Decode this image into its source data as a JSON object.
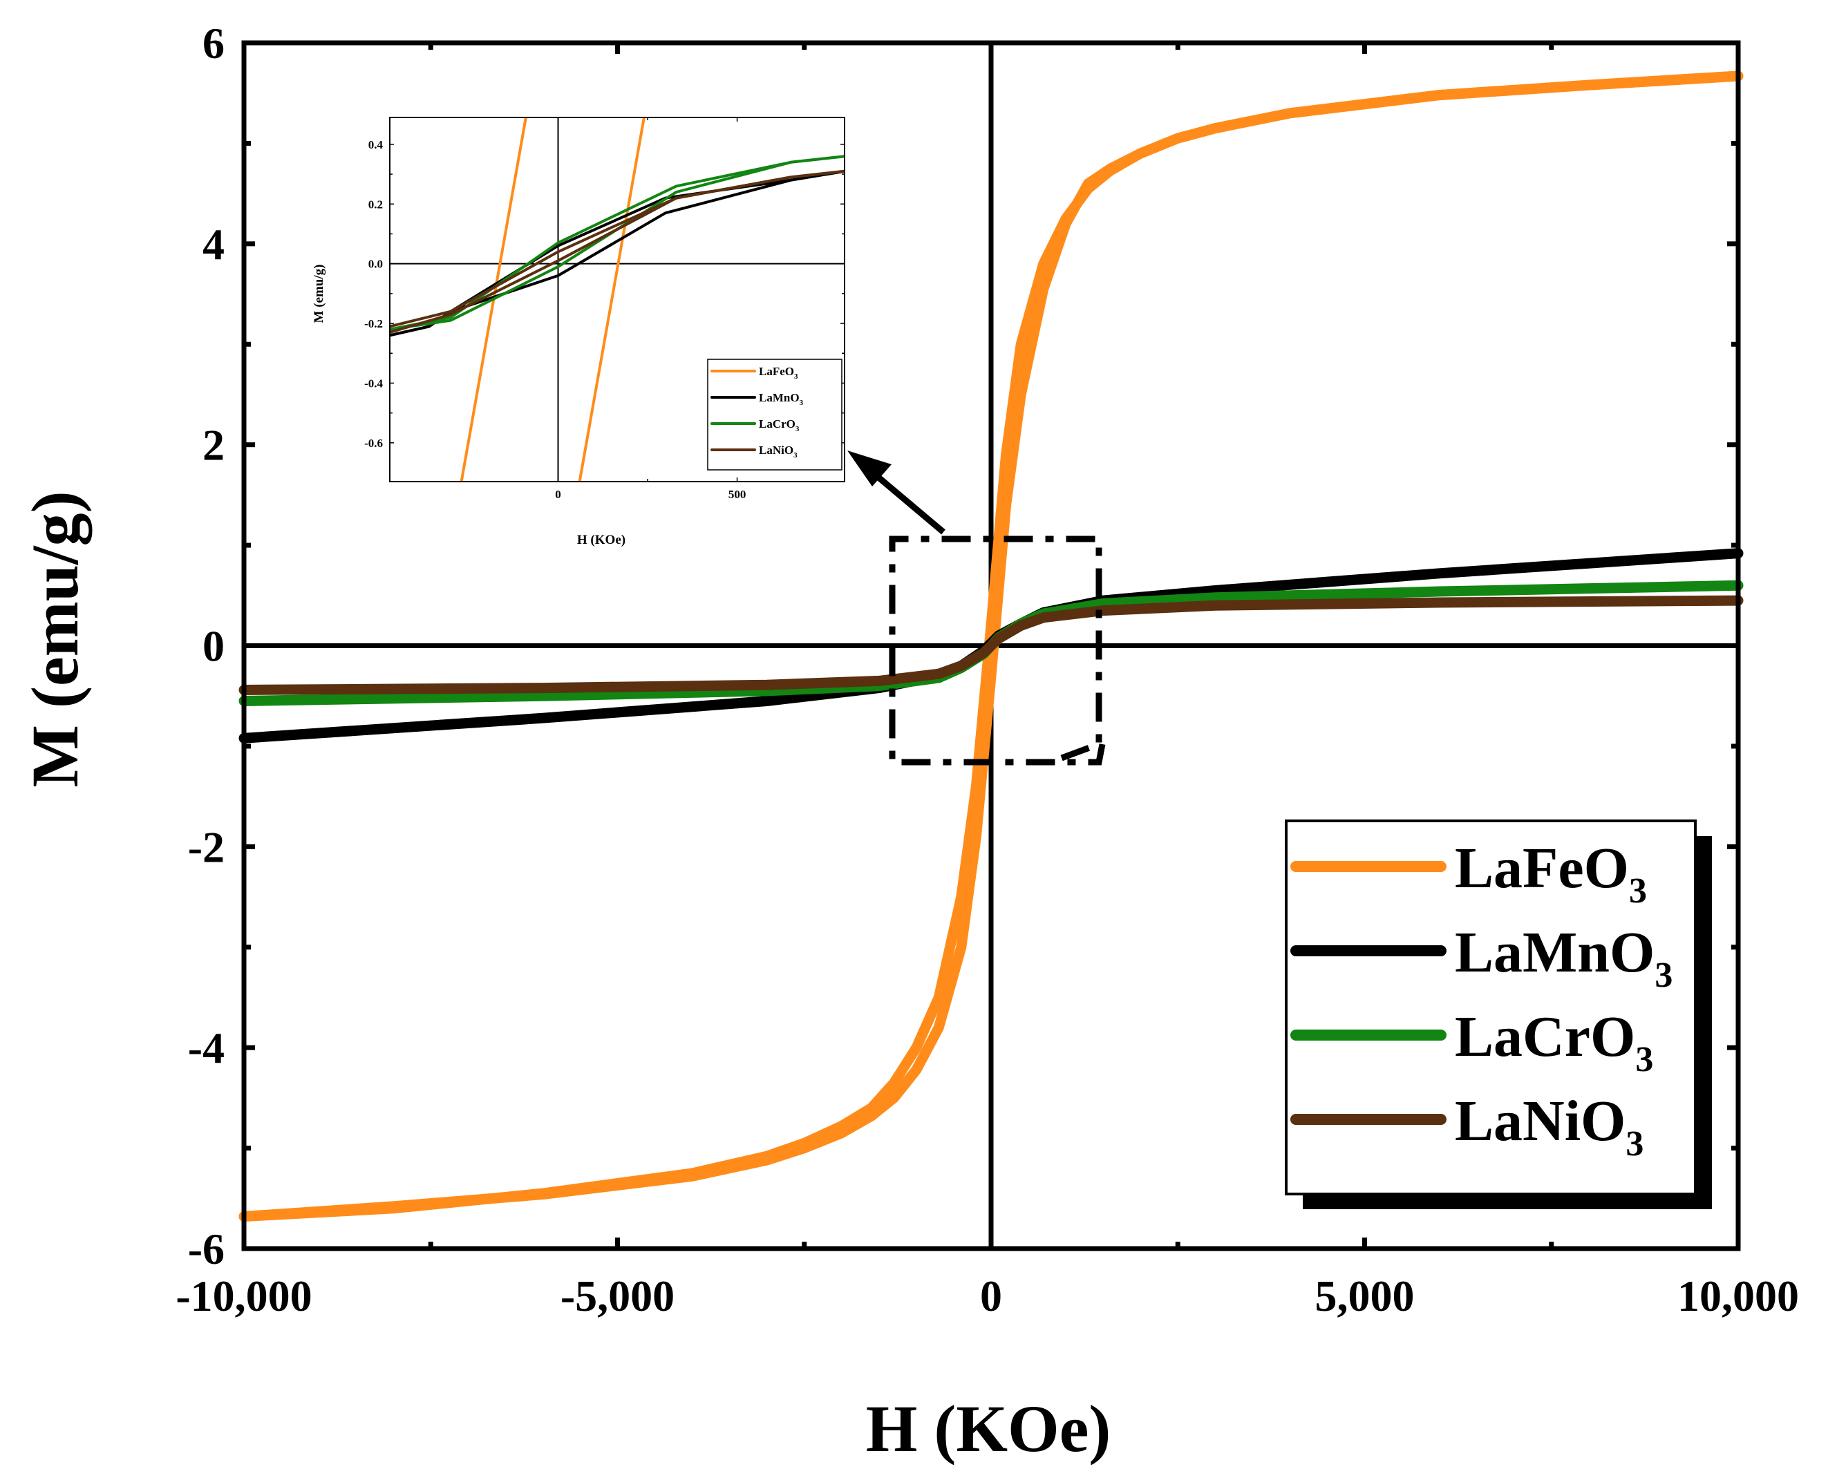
{
  "chart_data": [
    {
      "id": "main",
      "type": "line",
      "title": "",
      "xlabel": "H (KOe)",
      "ylabel": "M (emu/g)",
      "xlim": [
        -10000,
        10000
      ],
      "ylim": [
        -6,
        6
      ],
      "xticks": [
        -10000,
        -5000,
        0,
        5000,
        10000
      ],
      "xtick_labels": [
        "-10,000",
        "-5,000",
        "0",
        "5,000",
        "10,000"
      ],
      "yticks": [
        -6,
        -4,
        -2,
        0,
        2,
        4,
        6
      ],
      "ytick_labels": [
        "-6",
        "-4",
        "-2",
        "0",
        "2",
        "4",
        "6"
      ],
      "legend_position": "bottom-right",
      "series": [
        {
          "name": "LaFeO3",
          "formula": {
            "base": "LaFeO",
            "sub": "3"
          },
          "color": "#ff8c1a",
          "branches": [
            {
              "x": [
                -10000,
                -8000,
                -6000,
                -4000,
                -3000,
                -2500,
                -2000,
                -1600,
                -1300,
                -1000,
                -700,
                -400,
                -200,
                0,
                200,
                400,
                700,
                1000,
                1300,
                1600,
                2000,
                2500,
                3000,
                4000,
                6000,
                8000,
                10000
              ],
              "y": [
                -5.68,
                -5.6,
                -5.45,
                -5.25,
                -5.08,
                -4.95,
                -4.78,
                -4.6,
                -4.35,
                -4.0,
                -3.5,
                -2.5,
                -1.4,
                0.2,
                1.9,
                3.0,
                3.8,
                4.25,
                4.55,
                4.73,
                4.9,
                5.05,
                5.15,
                5.3,
                5.48,
                5.58,
                5.67
              ]
            },
            {
              "x": [
                10000,
                8000,
                6000,
                4000,
                3000,
                2500,
                2000,
                1600,
                1300,
                1000,
                700,
                400,
                200,
                0,
                -200,
                -400,
                -700,
                -1000,
                -1300,
                -1600,
                -2000,
                -2500,
                -3000,
                -4000,
                -6000,
                -8000,
                -10000
              ],
              "y": [
                5.67,
                5.58,
                5.48,
                5.3,
                5.15,
                5.05,
                4.9,
                4.75,
                4.6,
                4.2,
                3.55,
                2.5,
                1.4,
                -0.3,
                -1.9,
                -3.0,
                -3.8,
                -4.22,
                -4.5,
                -4.68,
                -4.85,
                -5.0,
                -5.12,
                -5.28,
                -5.46,
                -5.58,
                -5.68
              ]
            }
          ]
        },
        {
          "name": "LaMnO3",
          "formula": {
            "base": "LaMnO",
            "sub": "3"
          },
          "color": "#000000",
          "branches": [
            {
              "x": [
                -10000,
                -6000,
                -3000,
                -1500,
                -700,
                -400,
                -100,
                100,
                400,
                700,
                1500,
                3000,
                6000,
                10000
              ],
              "y": [
                -0.92,
                -0.72,
                -0.55,
                -0.42,
                -0.3,
                -0.2,
                -0.05,
                0.1,
                0.22,
                0.33,
                0.45,
                0.55,
                0.72,
                0.92
              ]
            }
          ]
        },
        {
          "name": "LaCrO3",
          "formula": {
            "base": "LaCrO",
            "sub": "3"
          },
          "color": "#128512",
          "branches": [
            {
              "x": [
                -10000,
                -6000,
                -3000,
                -1500,
                -700,
                -400,
                -100,
                100,
                400,
                700,
                1500,
                3000,
                6000,
                10000
              ],
              "y": [
                -0.55,
                -0.5,
                -0.45,
                -0.4,
                -0.32,
                -0.22,
                -0.08,
                0.08,
                0.22,
                0.32,
                0.42,
                0.48,
                0.54,
                0.6
              ]
            }
          ]
        },
        {
          "name": "LaNiO3",
          "formula": {
            "base": "LaNiO",
            "sub": "3"
          },
          "color": "#5a3010",
          "branches": [
            {
              "x": [
                -10000,
                -6000,
                -3000,
                -1500,
                -700,
                -400,
                -100,
                100,
                400,
                700,
                1500,
                3000,
                6000,
                10000
              ],
              "y": [
                -0.44,
                -0.42,
                -0.39,
                -0.35,
                -0.28,
                -0.2,
                -0.07,
                0.07,
                0.2,
                0.28,
                0.35,
                0.4,
                0.43,
                0.45
              ]
            }
          ]
        }
      ]
    },
    {
      "id": "inset",
      "type": "line",
      "title": "",
      "xlabel": "H (KOe)",
      "ylabel": "M (emu/g)",
      "xlim": [
        -470,
        800
      ],
      "ylim": [
        -0.73,
        0.49
      ],
      "xticks": [
        0,
        500
      ],
      "xtick_labels": [
        "0",
        "500"
      ],
      "yticks": [
        -0.6,
        -0.4,
        -0.2,
        0.0,
        0.2,
        0.4
      ],
      "ytick_labels": [
        "-0.6",
        "-0.4",
        "-0.2",
        "0.0",
        "0.2",
        "0.4"
      ],
      "legend_position": "bottom-right",
      "series": [
        {
          "name": "LaFeO3",
          "formula": {
            "base": "LaFeO",
            "sub": "3"
          },
          "color": "#ff8c1a",
          "branches": [
            {
              "x": [
                60,
                240
              ],
              "y": [
                -0.73,
                0.49
              ]
            },
            {
              "x": [
                -90,
                -270
              ],
              "y": [
                0.49,
                -0.73
              ]
            }
          ]
        },
        {
          "name": "LaMnO3",
          "formula": {
            "base": "LaMnO",
            "sub": "3"
          },
          "color": "#000000",
          "branches": [
            {
              "x": [
                -470,
                -360,
                -300,
                0,
                300,
                650,
                800
              ],
              "y": [
                -0.24,
                -0.21,
                -0.16,
                -0.04,
                0.17,
                0.28,
                0.31
              ]
            },
            {
              "x": [
                800,
                650,
                300,
                0,
                -300,
                -360,
                -470
              ],
              "y": [
                0.31,
                0.28,
                0.22,
                0.06,
                -0.16,
                -0.21,
                -0.24
              ]
            }
          ]
        },
        {
          "name": "LaCrO3",
          "formula": {
            "base": "LaCrO",
            "sub": "3"
          },
          "color": "#128512",
          "branches": [
            {
              "x": [
                -470,
                -300,
                0,
                330,
                650,
                800
              ],
              "y": [
                -0.22,
                -0.18,
                0.07,
                0.26,
                0.34,
                0.36
              ]
            },
            {
              "x": [
                800,
                650,
                330,
                0,
                -300,
                -470
              ],
              "y": [
                0.36,
                0.34,
                0.24,
                -0.01,
                -0.19,
                -0.22
              ]
            }
          ]
        },
        {
          "name": "LaNiO3",
          "formula": {
            "base": "LaNiO",
            "sub": "3"
          },
          "color": "#5a3010",
          "branches": [
            {
              "x": [
                -470,
                -300,
                0,
                330,
                650,
                800
              ],
              "y": [
                -0.21,
                -0.16,
                0.04,
                0.22,
                0.29,
                0.31
              ]
            },
            {
              "x": [
                800,
                650,
                330,
                0,
                -300,
                -470
              ],
              "y": [
                0.31,
                0.29,
                0.22,
                0.01,
                -0.17,
                -0.23
              ]
            }
          ]
        }
      ]
    }
  ]
}
